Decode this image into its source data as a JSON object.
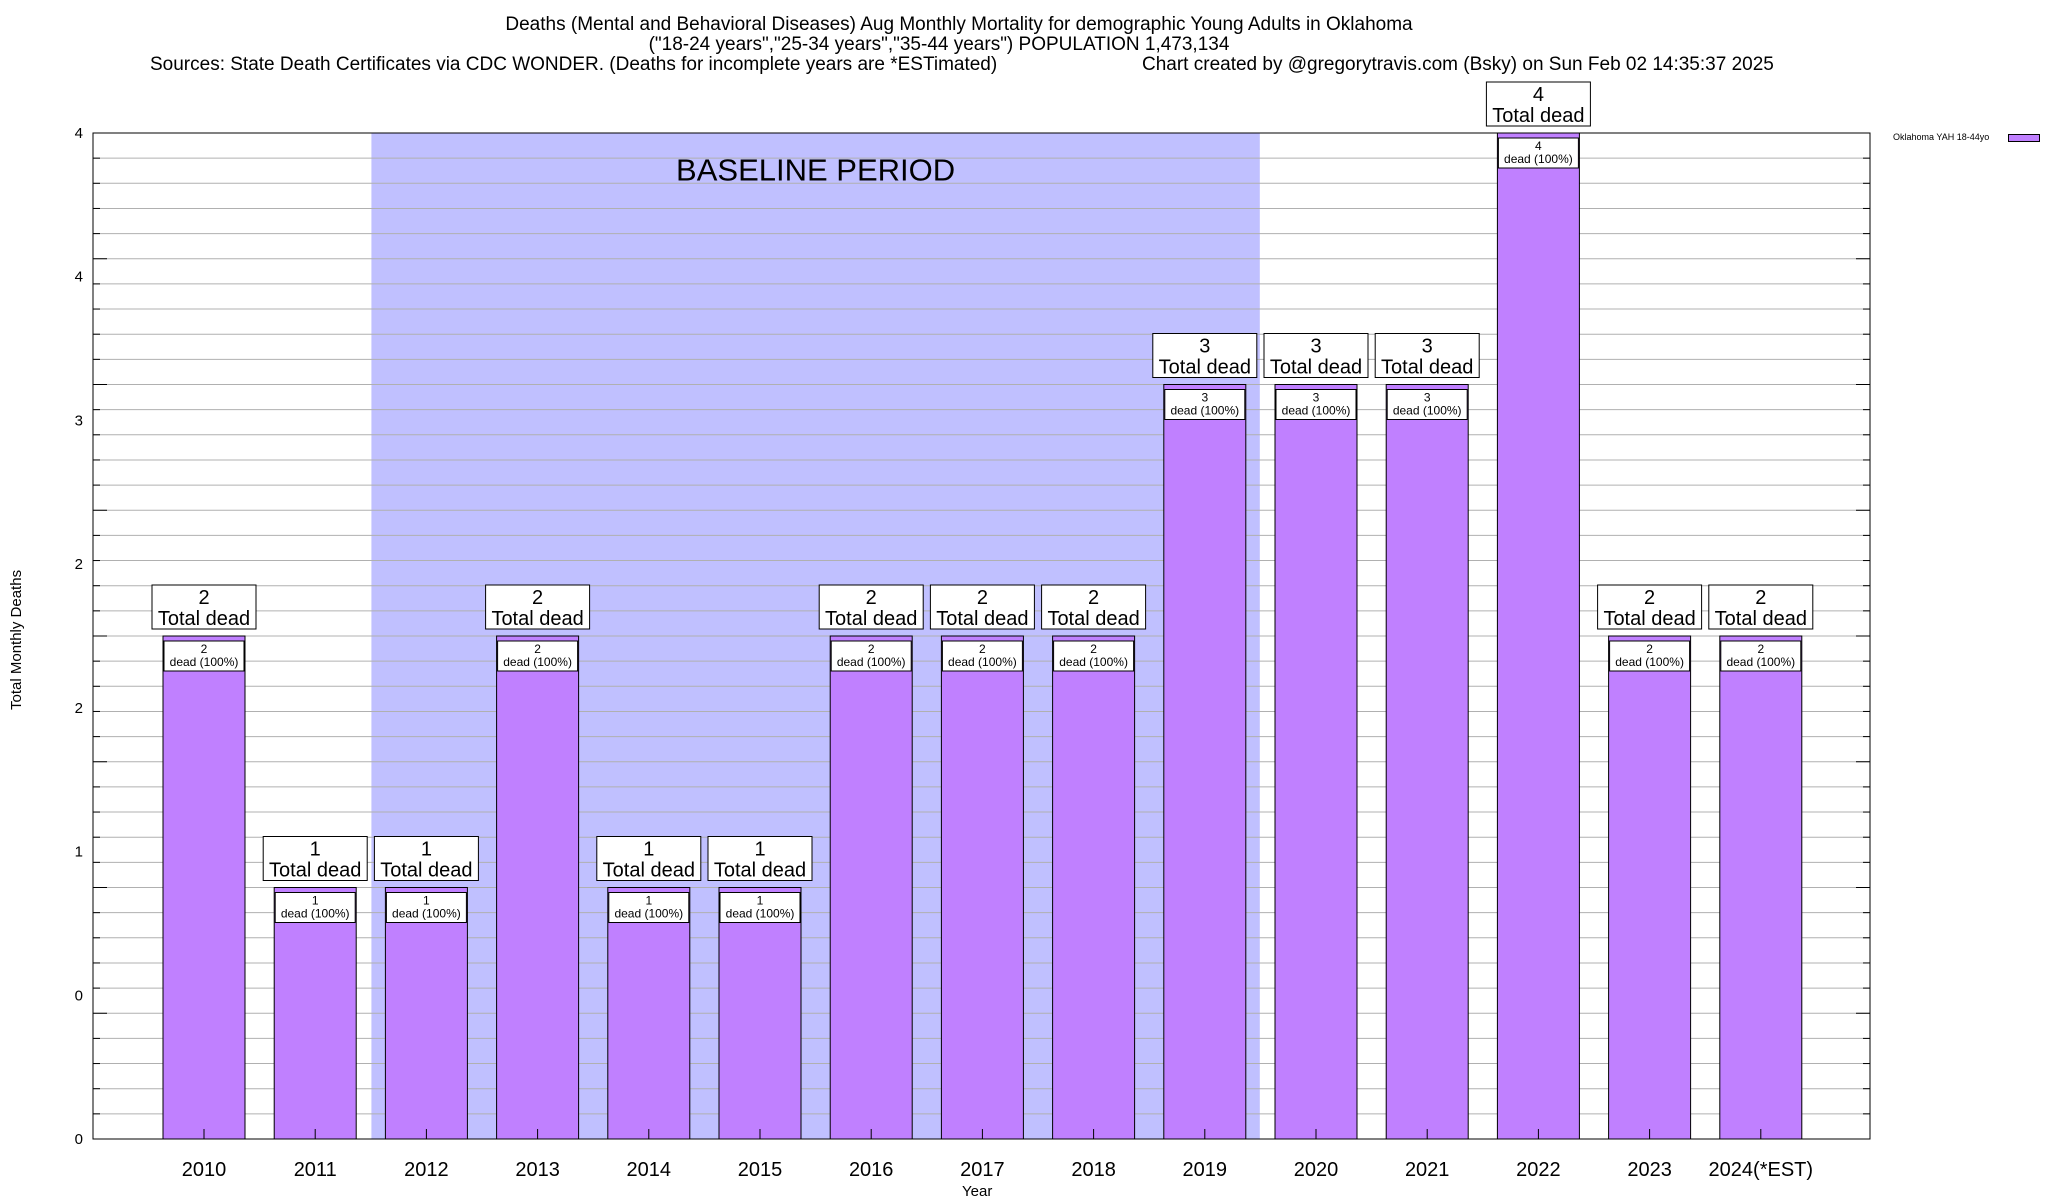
{
  "header": {
    "title_line1": "Deaths (Mental and Behavioral Diseases) Aug Monthly Mortality for demographic Young Adults in Oklahoma",
    "title_line2": "(\"18-24 years\",\"25-34 years\",\"35-44 years\") POPULATION 1,473,134",
    "title_line3_left": "Sources: State Death Certificates via CDC WONDER. (Deaths for incomplete years are *ESTimated)",
    "title_line3_right": "Chart created by @gregorytravis.com (Bsky) on Sun Feb 02 14:35:37 2025"
  },
  "chart_data": {
    "type": "bar",
    "xlabel": "Year",
    "ylabel": "Total Monthly Deaths",
    "categories": [
      "2010",
      "2011",
      "2012",
      "2013",
      "2014",
      "2015",
      "2016",
      "2017",
      "2018",
      "2019",
      "2020",
      "2021",
      "2022",
      "2023",
      "2024(*EST)"
    ],
    "series": [
      {
        "name": "Oklahoma YAH 18-44yo",
        "values": [
          2,
          1,
          1,
          2,
          1,
          1,
          2,
          2,
          2,
          3,
          3,
          3,
          4,
          2,
          2
        ]
      }
    ],
    "bar_labels_total": [
      "2\nTotal dead",
      "1\nTotal dead",
      "1\nTotal dead",
      "2\nTotal dead",
      "1\nTotal dead",
      "1\nTotal dead",
      "2\nTotal dead",
      "2\nTotal dead",
      "2\nTotal dead",
      "3\nTotal dead",
      "3\nTotal dead",
      "3\nTotal dead",
      "4\nTotal dead",
      "2\nTotal dead",
      "2\nTotal dead"
    ],
    "bar_labels_inner": [
      "2\ndead (100%)",
      "1\ndead (100%)",
      "1\ndead (100%)",
      "2\ndead (100%)",
      "1\ndead (100%)",
      "1\ndead (100%)",
      "2\ndead (100%)",
      "2\ndead (100%)",
      "2\ndead (100%)",
      "3\ndead (100%)",
      "3\ndead (100%)",
      "3\ndead (100%)",
      "4\ndead (100%)",
      "2\ndead (100%)",
      "2\ndead (100%)"
    ],
    "ylim": [
      0,
      4
    ],
    "ytick_labels": [
      "0",
      "0",
      "1",
      "2",
      "2",
      "3",
      "4",
      "4"
    ],
    "baseline_period": {
      "label": "BASELINE PERIOD",
      "start": "2012",
      "end": "2019"
    },
    "grid": true,
    "legend_position": "top-right",
    "colors": {
      "bar": "#c080ff",
      "baseline": "#c0c0ff"
    }
  }
}
